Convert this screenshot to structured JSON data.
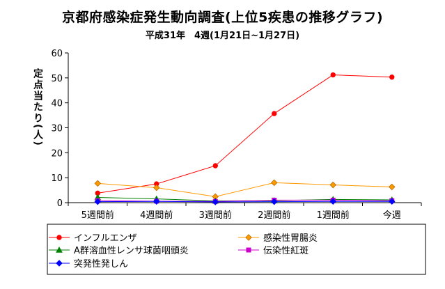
{
  "chart_data": {
    "type": "line",
    "title": "京都府感染症発生動向調査(上位5疾患の推移グラフ)",
    "subtitle": "平成31年　4週(1月21日~1月27日)",
    "ylabel": "定点当たり(人)",
    "xlabel": "",
    "categories": [
      "5週間前",
      "4週間前",
      "3週間前",
      "2週間前",
      "1週間前",
      "今週"
    ],
    "ylim": [
      0,
      60
    ],
    "yticks": [
      0,
      10,
      20,
      30,
      40,
      50,
      60
    ],
    "grid": false,
    "legend_position": "bottom",
    "series": [
      {
        "name": "インフルエンザ",
        "color": "#ff0000",
        "marker": "circle",
        "values": [
          3.8,
          7.5,
          14.8,
          35.7,
          51.2,
          50.3
        ]
      },
      {
        "name": "感染性胃腸炎",
        "color": "#ff9900",
        "marker": "diamond",
        "values": [
          7.7,
          6.0,
          2.4,
          8.0,
          7.1,
          6.3
        ]
      },
      {
        "name": "A群溶血性レンサ球菌咽頭炎",
        "color": "#008000",
        "marker": "triangle",
        "values": [
          2.1,
          1.5,
          0.7,
          0.8,
          1.3,
          1.1
        ]
      },
      {
        "name": "伝染性紅斑",
        "color": "#cc00cc",
        "marker": "square",
        "values": [
          0.8,
          0.6,
          0.5,
          1.0,
          1.0,
          0.8
        ]
      },
      {
        "name": "突発性発しん",
        "color": "#0000ff",
        "marker": "diamond",
        "values": [
          0.4,
          0.5,
          0.3,
          0.4,
          0.5,
          0.5
        ]
      }
    ]
  }
}
